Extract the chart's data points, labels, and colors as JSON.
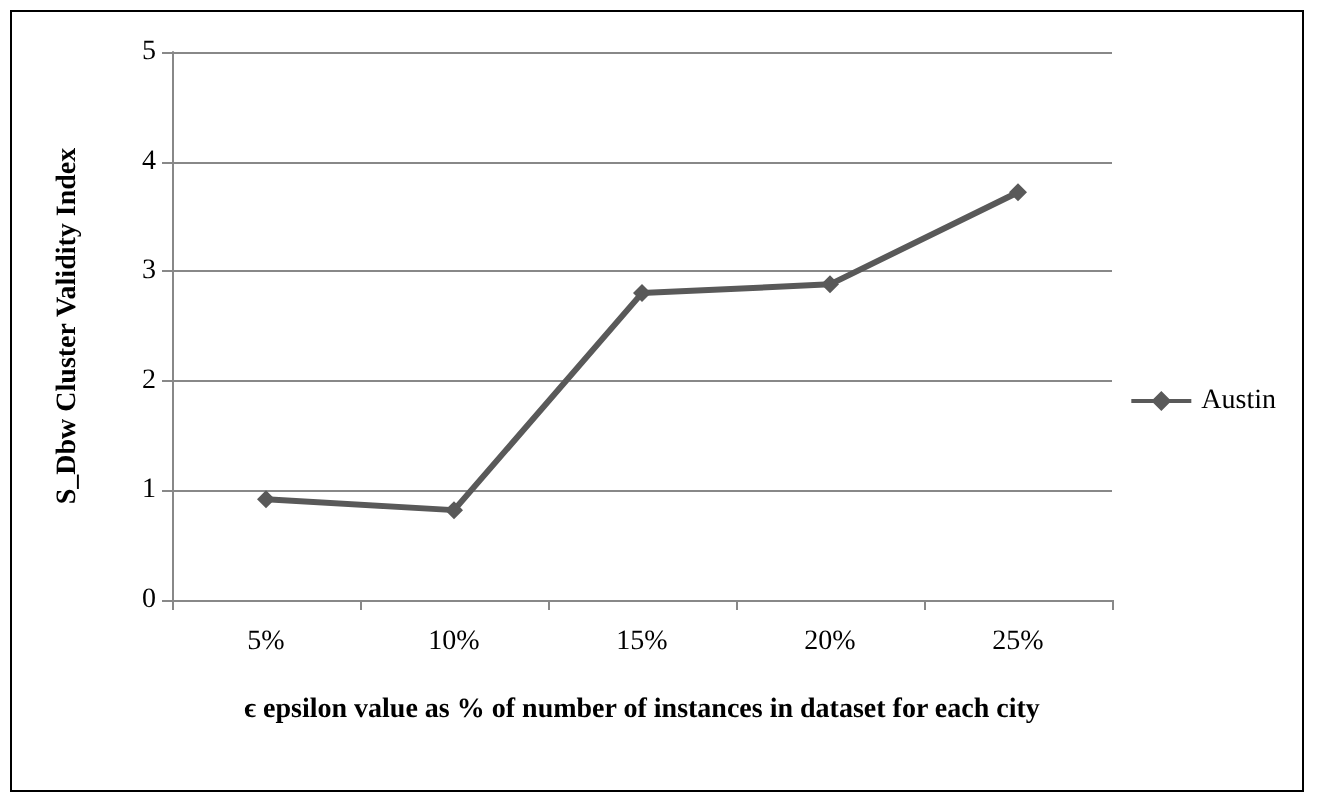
{
  "chart_data": {
    "type": "line",
    "xlabel": "ϵ epsilon value as % of number of instances in dataset for each city",
    "ylabel": "S_Dbw Cluster Validity Index",
    "categories": [
      "5%",
      "10%",
      "15%",
      "20%",
      "25%"
    ],
    "series": [
      {
        "name": "Austin",
        "color": "#595959",
        "values": [
          0.92,
          0.82,
          2.8,
          2.88,
          3.72
        ]
      }
    ],
    "ylim": [
      0,
      5
    ],
    "yticks": [
      0,
      1,
      2,
      3,
      4,
      5
    ],
    "grid": "y",
    "legend": "right",
    "marker": "diamond",
    "line_style": "solid"
  }
}
